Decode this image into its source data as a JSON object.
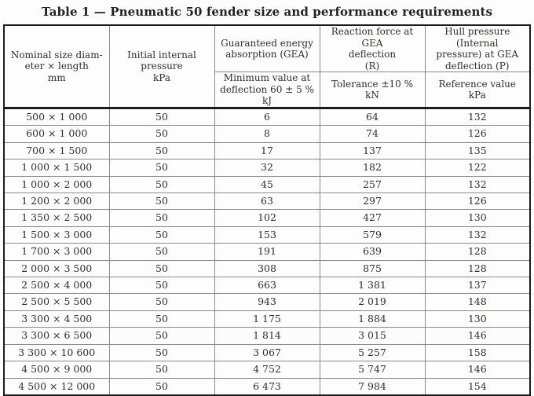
{
  "table": {
    "title": "Table 1 — Pneumatic 50 fender size and performance requirements",
    "columns": {
      "nominal_size": "Nominal size diam-\neter × length\nmm",
      "initial_pressure": "Initial internal\npressure\nkPa",
      "gea_top": "Guaranteed energy\nabsorption (GEA)",
      "gea_sub": "Minimum value at\ndeflection 60 ± 5 %\nkJ",
      "reaction_top": "Reaction force at GEA\ndeflection\n(R)",
      "reaction_sub": "Tolerance ±10 %\nkN",
      "hull_top": "Hull pressure (Internal\npressure) at GEA\ndeflection (P)",
      "hull_sub": "Reference value\nkPa"
    },
    "rows": [
      [
        "500 × 1 000",
        "50",
        "6",
        "64",
        "132"
      ],
      [
        "600 × 1 000",
        "50",
        "8",
        "74",
        "126"
      ],
      [
        "700 × 1 500",
        "50",
        "17",
        "137",
        "135"
      ],
      [
        "1 000 × 1 500",
        "50",
        "32",
        "182",
        "122"
      ],
      [
        "1 000 × 2 000",
        "50",
        "45",
        "257",
        "132"
      ],
      [
        "1 200 × 2 000",
        "50",
        "63",
        "297",
        "126"
      ],
      [
        "1 350 × 2 500",
        "50",
        "102",
        "427",
        "130"
      ],
      [
        "1 500 × 3 000",
        "50",
        "153",
        "579",
        "132"
      ],
      [
        "1 700 × 3 000",
        "50",
        "191",
        "639",
        "128"
      ],
      [
        "2 000 × 3 500",
        "50",
        "308",
        "875",
        "128"
      ],
      [
        "2 500 × 4 000",
        "50",
        "663",
        "1 381",
        "137"
      ],
      [
        "2 500 × 5 500",
        "50",
        "943",
        "2 019",
        "148"
      ],
      [
        "3 300 × 4 500",
        "50",
        "1 175",
        "1 884",
        "130"
      ],
      [
        "3 300 × 6 500",
        "50",
        "1 814",
        "3 015",
        "146"
      ],
      [
        "3 300 × 10 600",
        "50",
        "3 067",
        "5 257",
        "158"
      ],
      [
        "4 500 × 9 000",
        "50",
        "4 752",
        "5 747",
        "146"
      ],
      [
        "4 500 × 12 000",
        "50",
        "6 473",
        "7 984",
        "154"
      ]
    ],
    "colors": {
      "text": "#322e2b",
      "title_text": "#23201e",
      "thick_border": "#1b1b1b",
      "thin_border": "#8a8a8a",
      "background": "#fdfdfd"
    }
  }
}
